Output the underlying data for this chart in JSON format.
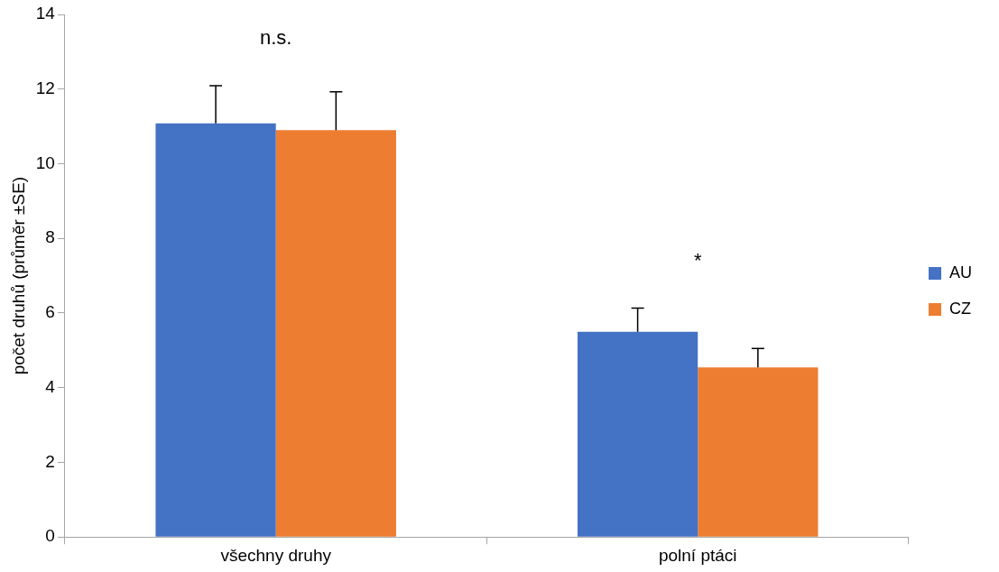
{
  "chart_data": {
    "type": "bar",
    "ylabel": "počet druhů (průměr ±SE)",
    "categories": [
      "všechny druhy",
      "polní ptáci"
    ],
    "series": [
      {
        "name": "AU",
        "color": "#4472c4",
        "values": [
          11.08,
          5.5
        ],
        "errors": [
          [
            11.08,
            12.09
          ],
          [
            5.5,
            6.13
          ]
        ]
      },
      {
        "name": "CZ",
        "color": "#ed7d31",
        "values": [
          10.9,
          4.54
        ],
        "errors": [
          [
            10.9,
            11.93
          ],
          [
            4.54,
            5.05
          ]
        ]
      }
    ],
    "ylim": [
      0,
      14
    ],
    "yticks": [
      0,
      2,
      4,
      6,
      8,
      10,
      12,
      14
    ],
    "grid": false,
    "legend": "right",
    "annotations": [
      "n.s.",
      "*"
    ]
  }
}
